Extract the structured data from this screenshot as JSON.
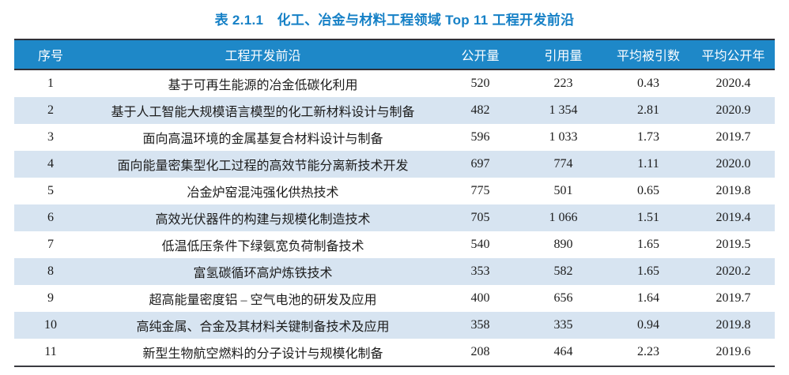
{
  "title": "表 2.1.1　化工、冶金与材料工程领域 Top 11 工程开发前沿",
  "colors": {
    "title_text": "#1580C6",
    "header_bg": "#1E88C8",
    "header_text": "#FDFEFF",
    "alt_row_bg": "#D7E4F1",
    "rule_dark": "#2F3038",
    "body_text": "#1C1C1C"
  },
  "table": {
    "columns": [
      "序号",
      "工程开发前沿",
      "公开量",
      "引用量",
      "平均被引数",
      "平均公开年"
    ],
    "rows": [
      [
        "1",
        "基于可再生能源的冶金低碳化利用",
        "520",
        "223",
        "0.43",
        "2020.4"
      ],
      [
        "2",
        "基于人工智能大规模语言模型的化工新材料设计与制备",
        "482",
        "1 354",
        "2.81",
        "2020.9"
      ],
      [
        "3",
        "面向高温环境的金属基复合材料设计与制备",
        "596",
        "1 033",
        "1.73",
        "2019.7"
      ],
      [
        "4",
        "面向能量密集型化工过程的高效节能分离新技术开发",
        "697",
        "774",
        "1.11",
        "2020.0"
      ],
      [
        "5",
        "冶金炉窑混沌强化供热技术",
        "775",
        "501",
        "0.65",
        "2019.8"
      ],
      [
        "6",
        "高效光伏器件的构建与规模化制造技术",
        "705",
        "1 066",
        "1.51",
        "2019.4"
      ],
      [
        "7",
        "低温低压条件下绿氨宽负荷制备技术",
        "540",
        "890",
        "1.65",
        "2019.5"
      ],
      [
        "8",
        "富氢碳循环高炉炼铁技术",
        "353",
        "582",
        "1.65",
        "2020.2"
      ],
      [
        "9",
        "超高能量密度铝 – 空气电池的研发及应用",
        "400",
        "656",
        "1.64",
        "2019.7"
      ],
      [
        "10",
        "高纯金属、合金及其材料关键制备技术及应用",
        "358",
        "335",
        "0.94",
        "2019.8"
      ],
      [
        "11",
        "新型生物航空燃料的分子设计与规模化制备",
        "208",
        "464",
        "2.23",
        "2019.6"
      ]
    ]
  }
}
